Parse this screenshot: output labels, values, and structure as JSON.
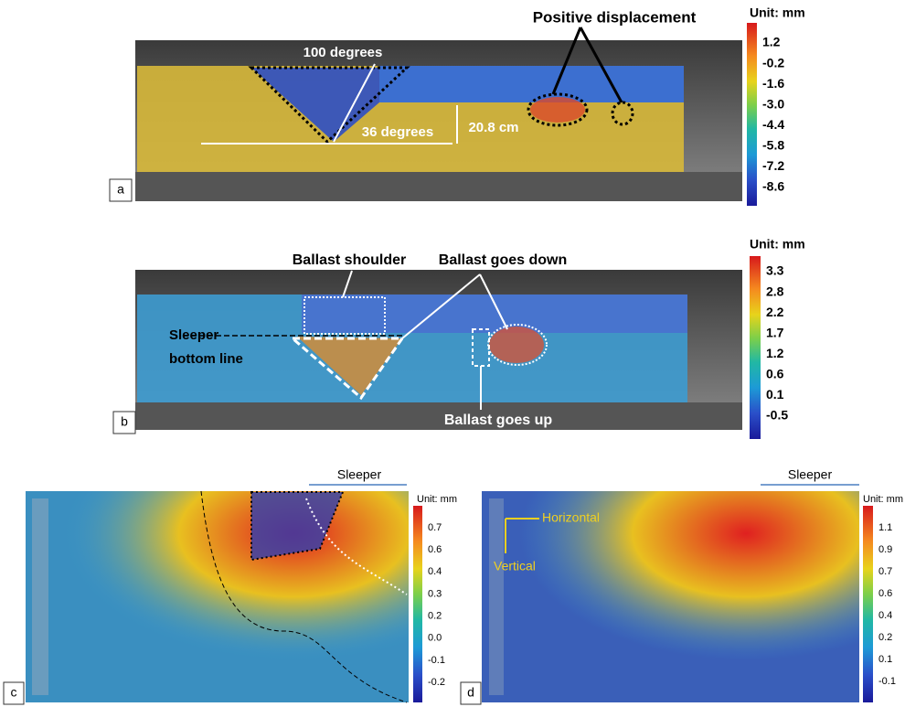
{
  "panels": [
    {
      "label": "a",
      "unit": "Unit: mm",
      "colorbar_ticks": [
        "1.2",
        "-0.2",
        "-1.6",
        "-3.0",
        "-4.4",
        "-5.8",
        "-7.2",
        "-8.6"
      ],
      "annotations": [
        "Positive displacement",
        "100 degrees",
        "36 degrees",
        "20.8 cm"
      ]
    },
    {
      "label": "b",
      "unit": "Unit: mm",
      "colorbar_ticks": [
        "3.3",
        "2.8",
        "2.2",
        "1.7",
        "1.2",
        "0.6",
        "0.1",
        "-0.5"
      ],
      "annotations": [
        "Ballast shoulder",
        "Ballast goes down",
        "Sleeper",
        "bottom line",
        "Ballast goes up"
      ]
    },
    {
      "label": "c",
      "unit": "Unit: mm",
      "colorbar_ticks": [
        "0.7",
        "0.6",
        "0.4",
        "0.3",
        "0.2",
        "0.0",
        "-0.1",
        "-0.2"
      ],
      "annotations": [
        "Sleeper"
      ]
    },
    {
      "label": "d",
      "unit": "Unit: mm",
      "colorbar_ticks": [
        "1.1",
        "0.9",
        "0.7",
        "0.6",
        "0.4",
        "0.2",
        "0.1",
        "-0.1"
      ],
      "annotations": [
        "Sleeper",
        "Horizontal",
        "Vertical"
      ]
    }
  ]
}
